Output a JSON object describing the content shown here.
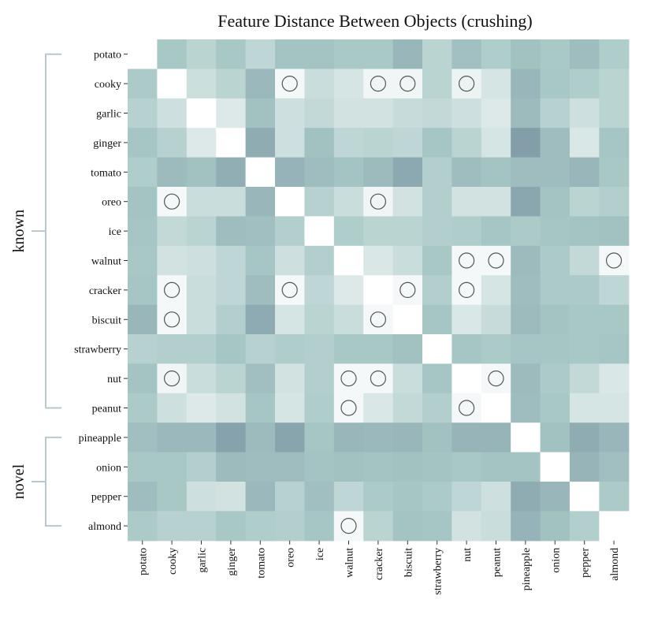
{
  "chart_data": {
    "type": "heatmap",
    "title": "Feature Distance Between Objects (crushing)",
    "labels": [
      "potato",
      "cooky",
      "garlic",
      "ginger",
      "tomato",
      "oreo",
      "ice",
      "walnut",
      "cracker",
      "biscuit",
      "strawberry",
      "nut",
      "peanut",
      "pineapple",
      "onion",
      "pepper",
      "almond"
    ],
    "groups": [
      {
        "name": "known",
        "members": [
          "potato",
          "cooky",
          "garlic",
          "ginger",
          "tomato",
          "oreo",
          "ice",
          "walnut",
          "cracker",
          "biscuit",
          "strawberry",
          "nut",
          "peanut"
        ]
      },
      {
        "name": "novel",
        "members": [
          "pineapple",
          "onion",
          "pepper",
          "almond"
        ]
      }
    ],
    "value_scale": "0 = identical (white), 1 = most distant (dark slate)",
    "color_low": "#ffffff",
    "color_mid": "#a9c9c7",
    "color_high": "#7f99a6",
    "circle_color": "#555555",
    "values": [
      [
        null,
        0.46,
        0.36,
        0.46,
        0.34,
        0.5,
        0.5,
        0.45,
        0.45,
        0.62,
        0.36,
        0.53,
        0.42,
        0.52,
        0.45,
        0.56,
        0.42
      ],
      [
        0.44,
        0.0,
        0.27,
        0.36,
        0.6,
        0.06,
        0.28,
        0.22,
        0.08,
        0.08,
        0.36,
        0.1,
        0.22,
        0.62,
        0.46,
        0.42,
        0.36
      ],
      [
        0.38,
        0.26,
        0.0,
        0.18,
        0.52,
        0.26,
        0.32,
        0.24,
        0.24,
        0.3,
        0.32,
        0.26,
        0.18,
        0.58,
        0.38,
        0.26,
        0.36
      ],
      [
        0.48,
        0.38,
        0.18,
        0.0,
        0.72,
        0.26,
        0.52,
        0.34,
        0.36,
        0.34,
        0.48,
        0.36,
        0.22,
        0.86,
        0.56,
        0.2,
        0.48
      ],
      [
        0.42,
        0.58,
        0.52,
        0.7,
        0.0,
        0.66,
        0.56,
        0.5,
        0.58,
        0.76,
        0.4,
        0.56,
        0.5,
        0.56,
        0.56,
        0.62,
        0.46
      ],
      [
        0.5,
        0.06,
        0.28,
        0.28,
        0.62,
        0.0,
        0.38,
        0.28,
        0.08,
        0.24,
        0.4,
        0.24,
        0.24,
        0.78,
        0.5,
        0.36,
        0.4
      ],
      [
        0.48,
        0.32,
        0.36,
        0.56,
        0.54,
        0.4,
        0.0,
        0.42,
        0.36,
        0.36,
        0.4,
        0.42,
        0.48,
        0.44,
        0.48,
        0.5,
        0.52
      ],
      [
        0.46,
        0.24,
        0.26,
        0.34,
        0.48,
        0.26,
        0.4,
        0.0,
        0.2,
        0.28,
        0.46,
        0.06,
        0.06,
        0.58,
        0.44,
        0.32,
        0.06
      ],
      [
        0.48,
        0.06,
        0.28,
        0.34,
        0.56,
        0.06,
        0.34,
        0.18,
        0.0,
        0.06,
        0.4,
        0.06,
        0.22,
        0.56,
        0.44,
        0.44,
        0.34
      ],
      [
        0.62,
        0.06,
        0.28,
        0.4,
        0.74,
        0.22,
        0.36,
        0.28,
        0.06,
        0.0,
        0.48,
        0.2,
        0.3,
        0.58,
        0.5,
        0.46,
        0.46
      ],
      [
        0.38,
        0.4,
        0.4,
        0.48,
        0.38,
        0.42,
        0.4,
        0.46,
        0.46,
        0.52,
        0.0,
        0.48,
        0.44,
        0.48,
        0.48,
        0.46,
        0.48
      ],
      [
        0.5,
        0.08,
        0.28,
        0.36,
        0.54,
        0.24,
        0.4,
        0.06,
        0.06,
        0.28,
        0.48,
        0.0,
        0.06,
        0.58,
        0.44,
        0.32,
        0.2
      ],
      [
        0.44,
        0.26,
        0.18,
        0.24,
        0.48,
        0.22,
        0.42,
        0.06,
        0.2,
        0.32,
        0.4,
        0.06,
        0.0,
        0.56,
        0.46,
        0.22,
        0.22
      ],
      [
        0.54,
        0.6,
        0.6,
        0.82,
        0.58,
        0.8,
        0.48,
        0.62,
        0.6,
        0.62,
        0.52,
        0.64,
        0.64,
        0.0,
        0.52,
        0.72,
        0.62
      ],
      [
        0.46,
        0.46,
        0.4,
        0.58,
        0.56,
        0.56,
        0.5,
        0.52,
        0.5,
        0.52,
        0.5,
        0.46,
        0.5,
        0.5,
        0.0,
        0.64,
        0.54
      ],
      [
        0.56,
        0.46,
        0.26,
        0.24,
        0.6,
        0.38,
        0.54,
        0.34,
        0.44,
        0.48,
        0.44,
        0.34,
        0.26,
        0.72,
        0.62,
        0.0,
        0.44
      ],
      [
        0.44,
        0.38,
        0.38,
        0.46,
        0.42,
        0.4,
        0.48,
        0.06,
        0.36,
        0.5,
        0.48,
        0.24,
        0.28,
        0.66,
        0.52,
        0.4,
        null
      ]
    ],
    "circled": [
      [
        "cooky",
        "oreo"
      ],
      [
        "cooky",
        "cracker"
      ],
      [
        "cooky",
        "biscuit"
      ],
      [
        "cooky",
        "nut"
      ],
      [
        "oreo",
        "cooky"
      ],
      [
        "oreo",
        "cracker"
      ],
      [
        "walnut",
        "nut"
      ],
      [
        "walnut",
        "peanut"
      ],
      [
        "walnut",
        "almond"
      ],
      [
        "cracker",
        "cooky"
      ],
      [
        "cracker",
        "oreo"
      ],
      [
        "cracker",
        "biscuit"
      ],
      [
        "cracker",
        "nut"
      ],
      [
        "biscuit",
        "cooky"
      ],
      [
        "biscuit",
        "cracker"
      ],
      [
        "nut",
        "cooky"
      ],
      [
        "nut",
        "walnut"
      ],
      [
        "nut",
        "cracker"
      ],
      [
        "nut",
        "peanut"
      ],
      [
        "peanut",
        "walnut"
      ],
      [
        "peanut",
        "nut"
      ],
      [
        "almond",
        "walnut"
      ]
    ]
  }
}
